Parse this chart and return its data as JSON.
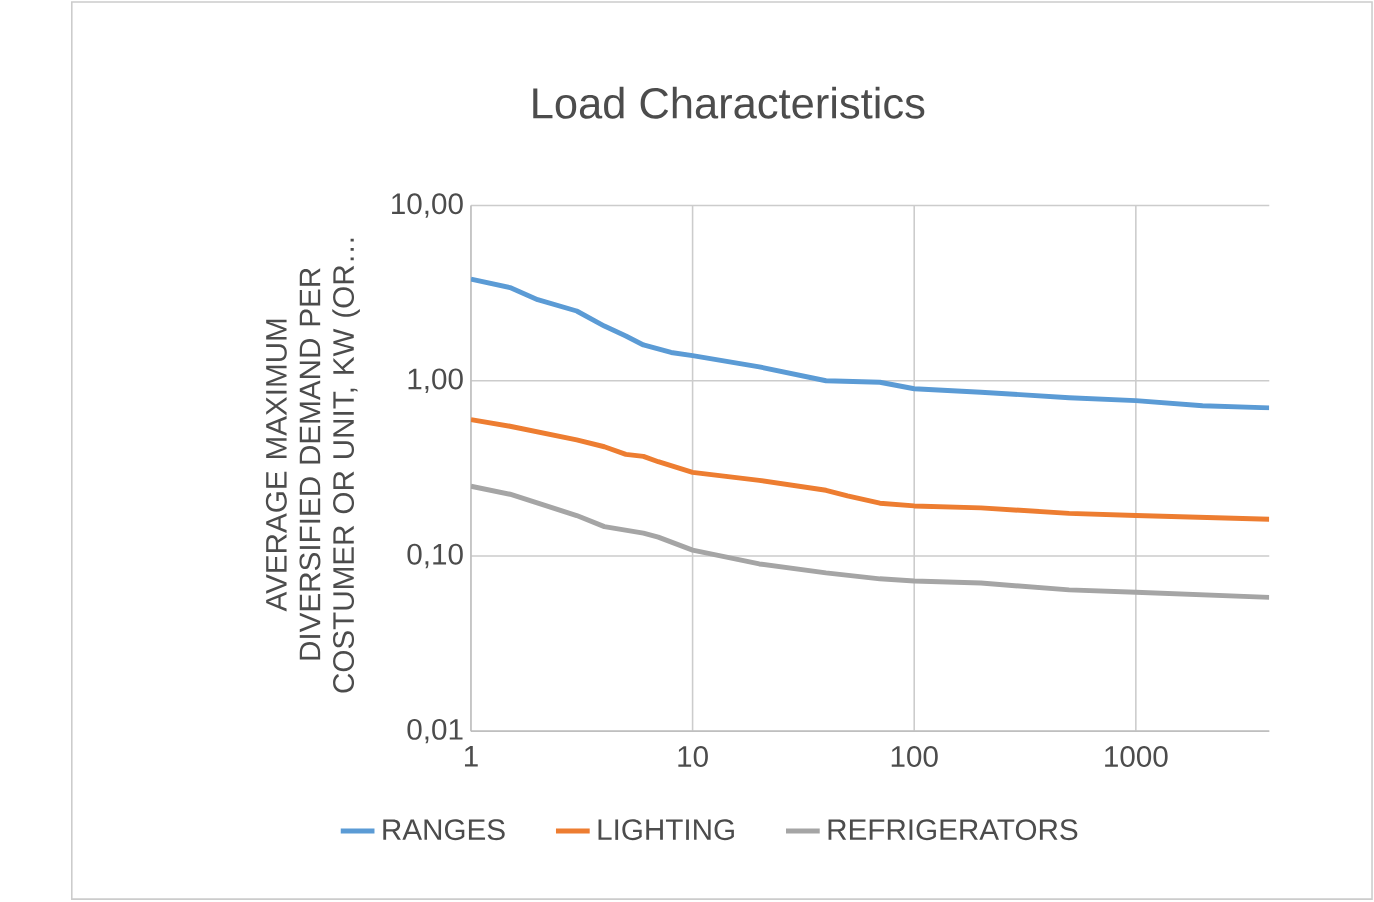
{
  "chart_data": {
    "type": "line",
    "title": "Load Characteristics",
    "ylabel": "AVERAGE MAXIMUM DIVERSIFIED DEMAND PER COSTUMER OR UNIT, KW (OR…",
    "log": "xy",
    "grid": true,
    "legend": "bottom",
    "marker": "none",
    "line_style": "solid",
    "xlim": [
      1,
      4000
    ],
    "ylim": [
      0.01,
      10
    ],
    "xticks": [
      1,
      10,
      100,
      1000
    ],
    "yticks": [
      {
        "value": 0.01,
        "label": "0,01"
      },
      {
        "value": 0.1,
        "label": "0,10"
      },
      {
        "value": 1,
        "label": "1,00"
      },
      {
        "value": 10,
        "label": "10,00"
      }
    ],
    "series": [
      {
        "name": "RANGES",
        "color": "#5b9bd5",
        "x": [
          1,
          1.5,
          2,
          3,
          4,
          5,
          6,
          8,
          10,
          20,
          40,
          70,
          100,
          200,
          500,
          1000,
          2000,
          4000
        ],
        "values": [
          3.8,
          3.4,
          2.9,
          2.5,
          2.05,
          1.8,
          1.6,
          1.45,
          1.39,
          1.2,
          1.0,
          0.98,
          0.9,
          0.86,
          0.8,
          0.77,
          0.72,
          0.7
        ]
      },
      {
        "name": "LIGHTING",
        "color": "#ed7d31",
        "x": [
          1,
          1.5,
          3,
          4,
          5,
          6,
          7,
          10,
          20,
          40,
          50,
          70,
          100,
          200,
          500,
          1000,
          4000
        ],
        "values": [
          0.6,
          0.55,
          0.46,
          0.42,
          0.38,
          0.37,
          0.345,
          0.3,
          0.27,
          0.237,
          0.22,
          0.2,
          0.193,
          0.188,
          0.175,
          0.17,
          0.162
        ]
      },
      {
        "name": "REFRIGERATORS",
        "color": "#a5a5a5",
        "x": [
          1,
          1.5,
          3,
          4,
          6,
          7,
          10,
          20,
          40,
          70,
          100,
          200,
          500,
          1000,
          4000
        ],
        "values": [
          0.25,
          0.225,
          0.17,
          0.147,
          0.135,
          0.128,
          0.108,
          0.09,
          0.08,
          0.074,
          0.072,
          0.07,
          0.064,
          0.062,
          0.058
        ]
      }
    ]
  }
}
